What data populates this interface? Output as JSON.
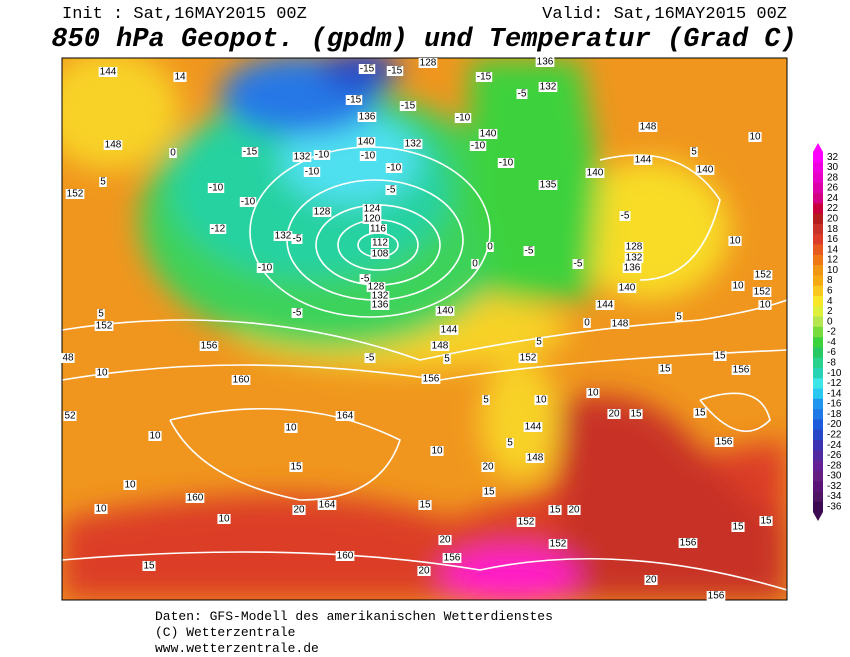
{
  "header": {
    "init": "Init : Sat,16MAY2015 00Z",
    "valid": "Valid: Sat,16MAY2015 00Z",
    "title": "850 hPa Geopot. (gpdm) und Temperatur (Grad C)"
  },
  "colorbar": {
    "ticks": [
      32,
      30,
      28,
      26,
      24,
      22,
      20,
      18,
      16,
      14,
      12,
      10,
      8,
      6,
      4,
      2,
      0,
      -2,
      -4,
      -6,
      -8,
      -10,
      -12,
      -14,
      -16,
      -18,
      -20,
      -22,
      -24,
      -26,
      -28,
      -30,
      -32,
      -34,
      -36
    ],
    "colors": [
      "#ff00ff",
      "#f000e0",
      "#e600c8",
      "#dc00aa",
      "#d20082",
      "#c8003c",
      "#b41e1e",
      "#c83228",
      "#dc3c28",
      "#e65a1e",
      "#f07814",
      "#f09614",
      "#f5aa14",
      "#f8c81e",
      "#f8e628",
      "#dcf03c",
      "#b4e650",
      "#78dc3c",
      "#3cd23c",
      "#28c864",
      "#28d28c",
      "#28d2b4",
      "#3ce6e6",
      "#28c8f0",
      "#1e96f0",
      "#1e78e6",
      "#1e5adc",
      "#2846c8",
      "#3c32b4",
      "#5028a0",
      "#641e96",
      "#641e82",
      "#5a1478",
      "#501464",
      "#3c0a50"
    ]
  },
  "contour_labels": [
    "144",
    "14",
    "148",
    "152",
    "5",
    "0",
    "-10",
    "-10",
    "-12",
    "-10",
    "132",
    "-5",
    "128",
    "-15",
    "132",
    "-10",
    "-10",
    "140",
    "-10",
    "136",
    "-15",
    "-15",
    "-15",
    "128",
    "-15",
    "132",
    "-10",
    "-5",
    "124",
    "120",
    "116",
    "112",
    "108",
    "-5",
    "128",
    "132",
    "136",
    "-5",
    "140",
    "144",
    "148",
    "-5",
    "152",
    "156",
    "156",
    "160",
    "164",
    "160",
    "164",
    "160",
    "152",
    "152",
    "156",
    "20",
    "20",
    "15",
    "15",
    "10",
    "10",
    "10",
    "10",
    "10",
    "5",
    "152",
    "52",
    "48",
    "10",
    "10",
    "20",
    "15",
    "15",
    "20",
    "15",
    "20",
    "144",
    "148",
    "10",
    "5",
    "5",
    "20",
    "15",
    "10",
    "15",
    "15",
    "156",
    "15",
    "15",
    "156",
    "20",
    "156",
    "156",
    "15",
    "148",
    "144",
    "5",
    "10",
    "140",
    "140",
    "10",
    "152",
    "10",
    "152",
    "10",
    "5",
    "148",
    "144",
    "140",
    "136",
    "132",
    "128",
    "-5",
    "-5",
    "-5",
    "0",
    "0",
    "135",
    "-10",
    "140",
    "-10",
    "-10",
    "-15",
    "-5",
    "132",
    "136",
    "0",
    "5",
    "5"
  ],
  "footer": {
    "source": "Daten: GFS-Modell des amerikanischen Wetterdienstes",
    "copyright": "(C) Wetterzentrale",
    "url": "www.wetterzentrale.de"
  }
}
